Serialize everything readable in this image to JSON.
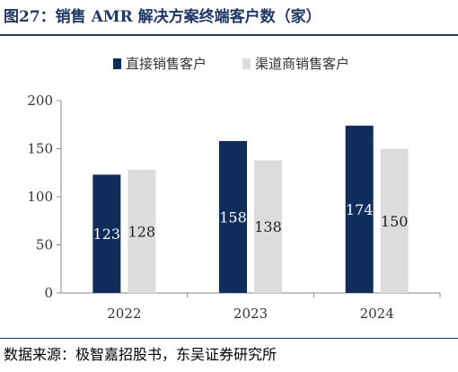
{
  "title": "图27：销售 AMR 解决方案终端客户数（家）",
  "source": "数据来源：极智嘉招股书，东吴证券研究所",
  "colors": {
    "series1": "#0e2d5b",
    "series2": "#dcdcdc",
    "accent": "#1f3864"
  },
  "chart_data": {
    "type": "bar",
    "categories": [
      "2022",
      "2023",
      "2024"
    ],
    "series": [
      {
        "name": "直接销售客户",
        "values": [
          123,
          158,
          174
        ]
      },
      {
        "name": "渠道商销售客户",
        "values": [
          128,
          138,
          150
        ]
      }
    ],
    "ylim": [
      0,
      200
    ],
    "yticks": [
      0,
      50,
      100,
      150,
      200
    ],
    "legend": "top-center",
    "grid": false
  }
}
